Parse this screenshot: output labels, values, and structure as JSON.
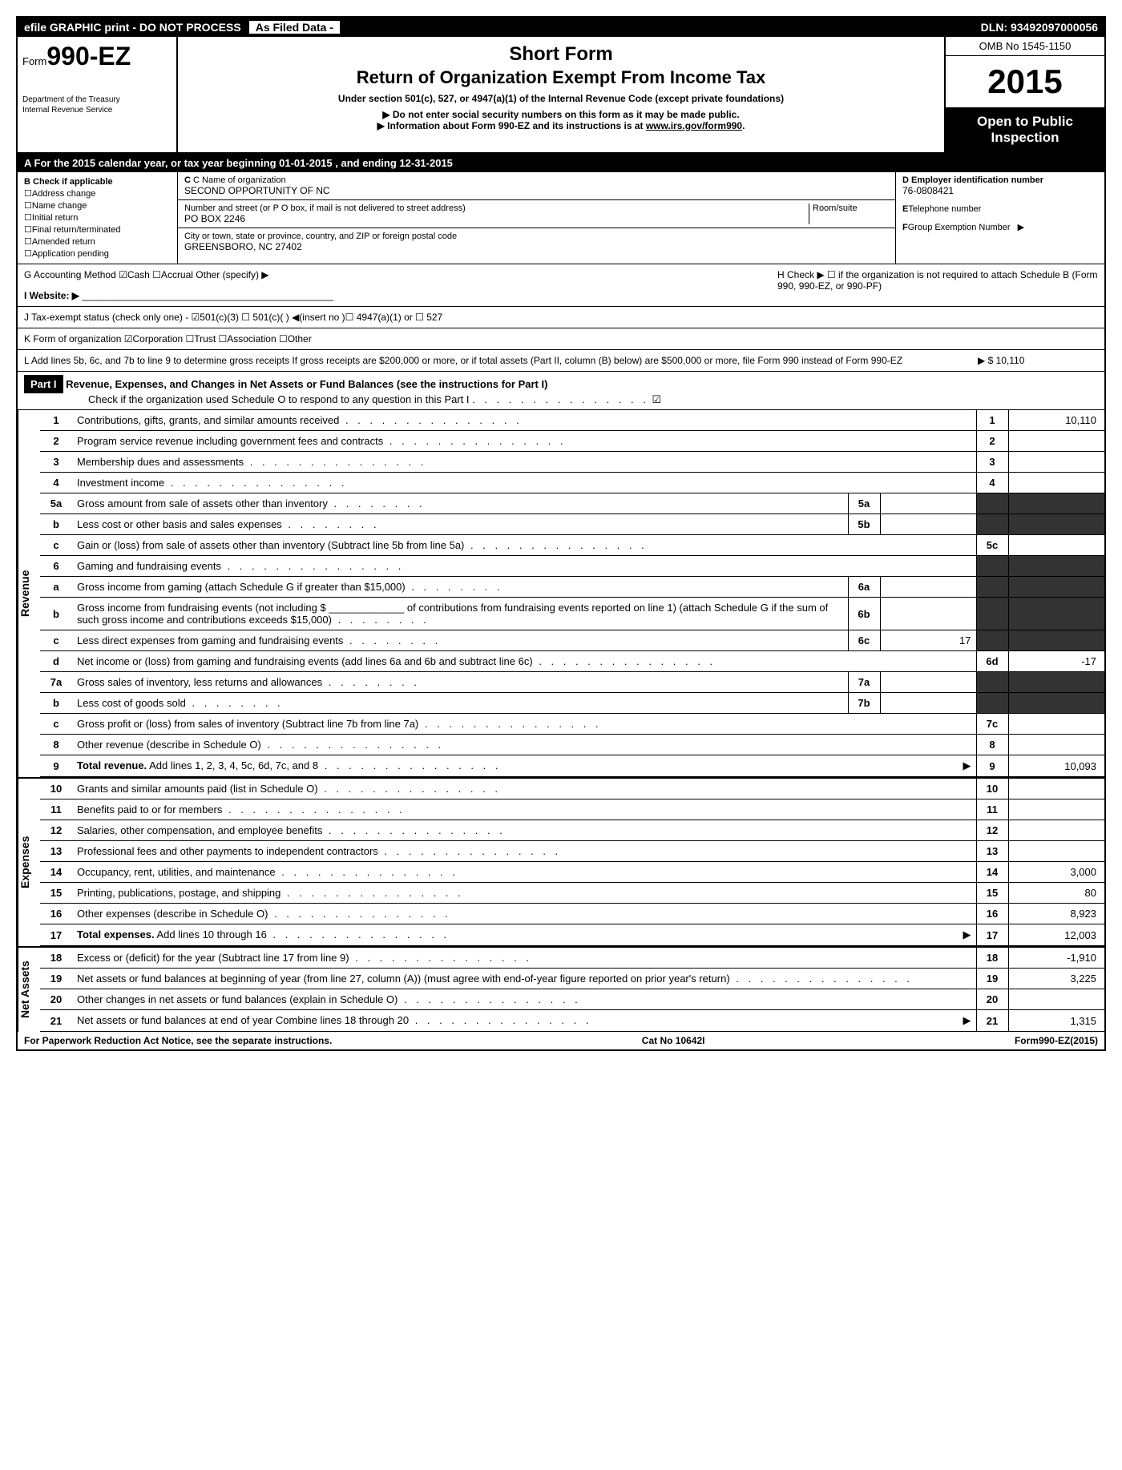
{
  "topbar": {
    "efile": "efile GRAPHIC print - DO NOT PROCESS",
    "asfiled": "As Filed Data -",
    "dln": "DLN: 93492097000056"
  },
  "header": {
    "form_prefix": "Form",
    "form_number": "990-EZ",
    "dept1": "Department of the Treasury",
    "dept2": "Internal Revenue Service",
    "title1": "Short Form",
    "title2": "Return of Organization Exempt From Income Tax",
    "subtitle": "Under section 501(c), 527, or 4947(a)(1) of the Internal Revenue Code (except private foundations)",
    "warn1": "Do not enter social security numbers on this form as it may be made public.",
    "warn2": "Information about Form 990-EZ and its instructions is at ",
    "warn2_link": "www.irs.gov/form990",
    "omb": "OMB No 1545-1150",
    "year": "2015",
    "open1": "Open to Public",
    "open2": "Inspection"
  },
  "rowA": "A  For the 2015 calendar year, or tax year beginning 01-01-2015           , and ending 12-31-2015",
  "colB": {
    "title": "B  Check if applicable",
    "items": [
      "Address change",
      "Name change",
      "Initial return",
      "Final return/terminated",
      "Amended return",
      "Application pending"
    ]
  },
  "colC": {
    "name_label": "C Name of organization",
    "name": "SECOND OPPORTUNITY OF NC",
    "street_label": "Number and street (or P  O  box, if mail is not delivered to street address)",
    "room_label": "Room/suite",
    "street": "PO BOX 2246",
    "city_label": "City or town, state or province, country, and ZIP or foreign postal code",
    "city": "GREENSBORO, NC  27402"
  },
  "colD": {
    "ein_label": "D Employer identification number",
    "ein": "76-0808421",
    "tel_label": "E Telephone number",
    "group_label": "F Group Exemption Number"
  },
  "rowG": "G Accounting Method   ☑Cash  ☐Accrual  Other (specify) ▶",
  "rowH": "H  Check ▶ ☐ if the organization is not required to attach Schedule B (Form 990, 990-EZ, or 990-PF)",
  "rowI": "I Website: ▶",
  "rowJ": "J Tax-exempt status (check only one) - ☑501(c)(3)  ☐ 501(c)(  ) ◀(insert no )☐ 4947(a)(1) or ☐ 527",
  "rowK": "K Form of organization   ☑Corporation  ☐Trust  ☐Association  ☐Other",
  "rowL": "L Add lines 5b, 6c, and 7b to line 9 to determine gross receipts  If gross receipts are $200,000 or more, or if total assets (Part II, column (B) below) are $500,000 or more, file Form 990 instead of Form 990-EZ",
  "rowL_val": "▶ $ 10,110",
  "part1": {
    "label": "Part I",
    "title": "Revenue, Expenses, and Changes in Net Assets or Fund Balances (see the instructions for Part I)",
    "check": "Check if the organization used Schedule O to respond to any question in this Part I"
  },
  "sections": {
    "revenue": "Revenue",
    "expenses": "Expenses",
    "netassets": "Net Assets"
  },
  "lines": [
    {
      "n": "1",
      "desc": "Contributions, gifts, grants, and similar amounts received",
      "ln": "1",
      "val": "10,110"
    },
    {
      "n": "2",
      "desc": "Program service revenue including government fees and contracts",
      "ln": "2",
      "val": ""
    },
    {
      "n": "3",
      "desc": "Membership dues and assessments",
      "ln": "3",
      "val": ""
    },
    {
      "n": "4",
      "desc": "Investment income",
      "ln": "4",
      "val": ""
    },
    {
      "n": "5a",
      "desc": "Gross amount from sale of assets other than inventory",
      "sub": "5a",
      "subval": "",
      "black": true
    },
    {
      "n": "b",
      "desc": "Less  cost or other basis and sales expenses",
      "sub": "5b",
      "subval": "",
      "black": true
    },
    {
      "n": "c",
      "desc": "Gain or (loss) from sale of assets other than inventory (Subtract line 5b from line 5a)",
      "ln": "5c",
      "val": ""
    },
    {
      "n": "6",
      "desc": "Gaming and fundraising events",
      "blackfull": true
    },
    {
      "n": "a",
      "desc": "Gross income from gaming (attach Schedule G if greater than $15,000)",
      "sub": "6a",
      "subval": "",
      "black": true
    },
    {
      "n": "b",
      "desc": "Gross income from fundraising events (not including $ _____________ of contributions from fundraising events reported on line 1) (attach Schedule G if the sum of such gross income and contributions exceeds $15,000)",
      "sub": "6b",
      "subval": "",
      "black": true
    },
    {
      "n": "c",
      "desc": "Less  direct expenses from gaming and fundraising events",
      "sub": "6c",
      "subval": "17",
      "black": true
    },
    {
      "n": "d",
      "desc": "Net income or (loss) from gaming and fundraising events (add lines 6a and 6b and subtract line 6c)",
      "ln": "6d",
      "val": "-17"
    },
    {
      "n": "7a",
      "desc": "Gross sales of inventory, less returns and allowances",
      "sub": "7a",
      "subval": "",
      "black": true
    },
    {
      "n": "b",
      "desc": "Less  cost of goods sold",
      "sub": "7b",
      "subval": "",
      "black": true
    },
    {
      "n": "c",
      "desc": "Gross profit or (loss) from sales of inventory (Subtract line 7b from line 7a)",
      "ln": "7c",
      "val": ""
    },
    {
      "n": "8",
      "desc": "Other revenue (describe in Schedule O)",
      "ln": "8",
      "val": ""
    },
    {
      "n": "9",
      "desc": "Total revenue. Add lines 1, 2, 3, 4, 5c, 6d, 7c, and 8",
      "ln": "9",
      "val": "10,093",
      "bold": true,
      "arrow": true
    }
  ],
  "expense_lines": [
    {
      "n": "10",
      "desc": "Grants and similar amounts paid (list in Schedule O)",
      "ln": "10",
      "val": ""
    },
    {
      "n": "11",
      "desc": "Benefits paid to or for members",
      "ln": "11",
      "val": ""
    },
    {
      "n": "12",
      "desc": "Salaries, other compensation, and employee benefits",
      "ln": "12",
      "val": ""
    },
    {
      "n": "13",
      "desc": "Professional fees and other payments to independent contractors",
      "ln": "13",
      "val": ""
    },
    {
      "n": "14",
      "desc": "Occupancy, rent, utilities, and maintenance",
      "ln": "14",
      "val": "3,000"
    },
    {
      "n": "15",
      "desc": "Printing, publications, postage, and shipping",
      "ln": "15",
      "val": "80"
    },
    {
      "n": "16",
      "desc": "Other expenses (describe in Schedule O)",
      "ln": "16",
      "val": "8,923"
    },
    {
      "n": "17",
      "desc": "Total expenses. Add lines 10 through 16",
      "ln": "17",
      "val": "12,003",
      "bold": true,
      "arrow": true
    }
  ],
  "netasset_lines": [
    {
      "n": "18",
      "desc": "Excess or (deficit) for the year (Subtract line 17 from line 9)",
      "ln": "18",
      "val": "-1,910"
    },
    {
      "n": "19",
      "desc": "Net assets or fund balances at beginning of year (from line 27, column (A)) (must agree with end-of-year figure reported on prior year's return)",
      "ln": "19",
      "val": "3,225"
    },
    {
      "n": "20",
      "desc": "Other changes in net assets or fund balances (explain in Schedule O)",
      "ln": "20",
      "val": ""
    },
    {
      "n": "21",
      "desc": "Net assets or fund balances at end of year  Combine lines 18 through 20",
      "ln": "21",
      "val": "1,315",
      "arrow": true
    }
  ],
  "footer": {
    "left": "For Paperwork Reduction Act Notice, see the separate instructions.",
    "center": "Cat No  10642I",
    "right": "Form 990-EZ (2015)"
  }
}
